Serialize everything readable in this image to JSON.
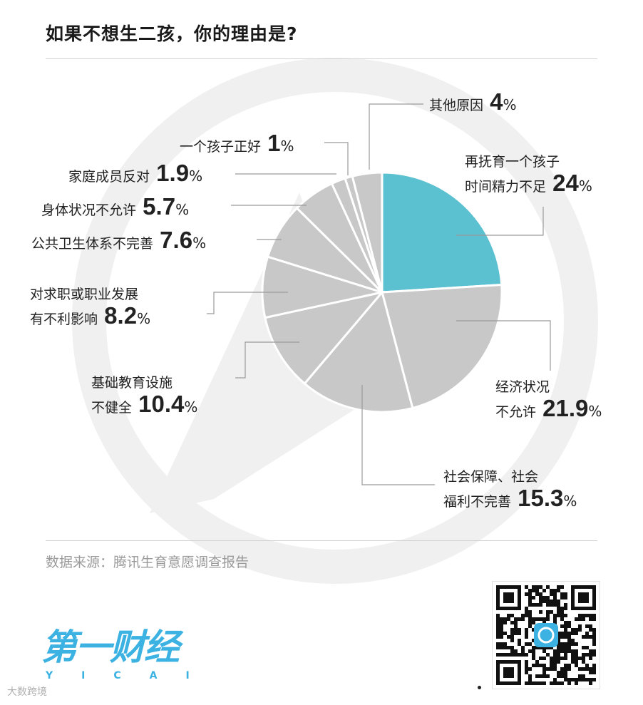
{
  "title": "如果不想生二孩，你的理由是?",
  "source": "数据来源：腾讯生育意愿调查报告",
  "logo": {
    "main": "第一财经",
    "sub": "YICAI"
  },
  "watermark": "大数跨境",
  "colors": {
    "highlight": "#5bc1d0",
    "slice": "#c8c8c8",
    "bg_ring": "#f0f0f0",
    "brand": "#3bb2e2"
  },
  "chart_data": {
    "type": "pie",
    "start_angle_deg": 0,
    "direction": "clockwise",
    "slices": [
      {
        "label_lines": [
          "再抚育一个孩子",
          "时间精力不足"
        ],
        "value": 24,
        "value_text": "24",
        "highlight": true
      },
      {
        "label_lines": [
          "经济状况",
          "不允许"
        ],
        "value": 21.9,
        "value_text": "21.9"
      },
      {
        "label_lines": [
          "社会保障、社会",
          "福利不完善"
        ],
        "value": 15.3,
        "value_text": "15.3"
      },
      {
        "label_lines": [
          "基础教育设施",
          "不健全"
        ],
        "value": 10.4,
        "value_text": "10.4"
      },
      {
        "label_lines": [
          "对求职或职业发展",
          "有不利影响"
        ],
        "value": 8.2,
        "value_text": "8.2"
      },
      {
        "label_lines": [
          "公共卫生体系不完善"
        ],
        "value": 7.6,
        "value_text": "7.6"
      },
      {
        "label_lines": [
          "身体状况不允许"
        ],
        "value": 5.7,
        "value_text": "5.7"
      },
      {
        "label_lines": [
          "家庭成员反对"
        ],
        "value": 1.9,
        "value_text": "1.9"
      },
      {
        "label_lines": [
          "一个孩子正好"
        ],
        "value": 1,
        "value_text": "1"
      },
      {
        "label_lines": [
          "其他原因"
        ],
        "value": 4,
        "value_text": "4"
      }
    ],
    "unit": "%"
  }
}
